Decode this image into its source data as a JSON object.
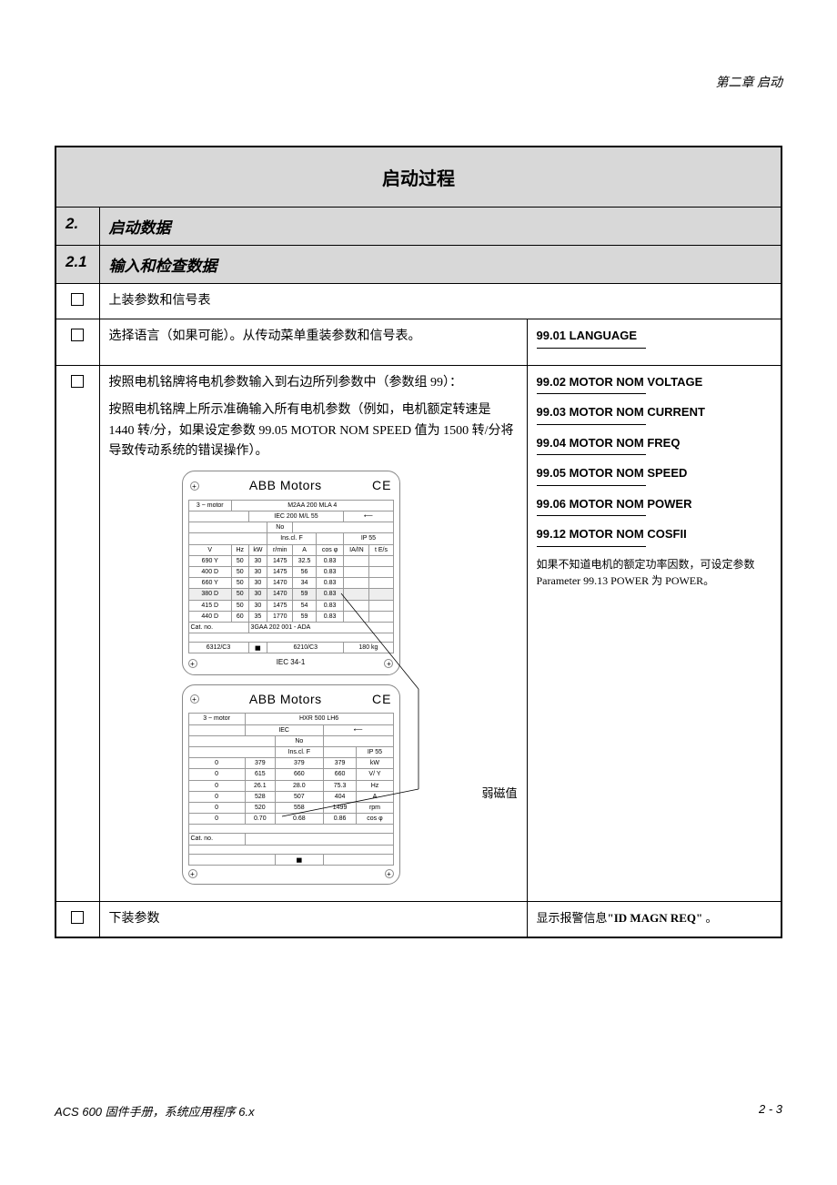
{
  "chapter_header": "第二章 启动",
  "title": "启动过程",
  "section2": {
    "num": "2.",
    "label": "启动数据"
  },
  "section21": {
    "num": "2.1",
    "label": "输入和检查数据"
  },
  "row1": {
    "desc": "上装参数和信号表"
  },
  "row2": {
    "desc": "选择语言（如果可能）。从传动菜单重装参数和信号表。",
    "param": "99.01 LANGUAGE"
  },
  "row3": {
    "desc1": "按照电机铭牌将电机参数输入到右边所列参数中（参数组 99）：",
    "desc2": "按照电机铭牌上所示准确输入所有电机参数（例如，电机额定转速是 1440 转/分，如果设定参数 99.05 MOTOR NOM SPEED 值为 1500 转/分将导致传动系统的错误操作）。",
    "params": [
      "99.02 MOTOR NOM VOLTAGE",
      "99.03 MOTOR NOM CURRENT",
      "99.04 MOTOR NOM FREQ",
      "99.05 MOTOR NOM SPEED",
      "99.06 MOTOR NOM POWER",
      "99.12 MOTOR NOM COSFII"
    ],
    "note": "如果不知道电机的额定功率因数，可设定参数 Parameter 99.13 POWER 为 POWER。",
    "callout": "弱磁值"
  },
  "row4": {
    "desc": "下装参数",
    "param": "显示报警信息\"ID MAGN REQ\" 。"
  },
  "nameplate1": {
    "brand": "ABB Motors",
    "ce": "CE",
    "motor_type": "3 ~ motor",
    "model": "M2AA 200 MLA 4",
    "iec": "IEC 200 M/L 55",
    "no_label": "No",
    "ins": "Ins.cl. F",
    "ip": "IP 55",
    "headers": [
      "V",
      "Hz",
      "kW",
      "r/min",
      "A",
      "cos φ",
      "IA/IN",
      "t E/s"
    ],
    "rows": [
      [
        "690 Y",
        "50",
        "30",
        "1475",
        "32.5",
        "0.83",
        "",
        ""
      ],
      [
        "400 D",
        "50",
        "30",
        "1475",
        "56",
        "0.83",
        "",
        ""
      ],
      [
        "660 Y",
        "50",
        "30",
        "1470",
        "34",
        "0.83",
        "",
        ""
      ],
      [
        "380 D",
        "50",
        "30",
        "1470",
        "59",
        "0.83",
        "",
        ""
      ],
      [
        "415 D",
        "50",
        "30",
        "1475",
        "54",
        "0.83",
        "",
        ""
      ],
      [
        "440 D",
        "60",
        "35",
        "1770",
        "59",
        "0.83",
        "",
        ""
      ]
    ],
    "highlight_row": 3,
    "catno_label": "Cat. no.",
    "catno": "3GAA 202 001 - ADA",
    "bottom1": "6312/C3",
    "bottom2": "6210/C3",
    "bottom3": "180  kg",
    "iec34": "IEC 34-1"
  },
  "nameplate2": {
    "brand": "ABB Motors",
    "ce": "CE",
    "motor_type": "3 ~ motor",
    "model": "HXR 500 LH6",
    "iec": "IEC",
    "no_label": "No",
    "ins": "Ins.cl. F",
    "ip": "IP 55",
    "rows": [
      [
        "0",
        "379",
        "379",
        "379",
        "kW"
      ],
      [
        "0",
        "615",
        "660",
        "660",
        "V/ Y"
      ],
      [
        "0",
        "26.1",
        "28.0",
        "75.3",
        "Hz"
      ],
      [
        "0",
        "528",
        "507",
        "404",
        "A"
      ],
      [
        "0",
        "520",
        "558",
        "1499",
        "rpm"
      ],
      [
        "0",
        "0.70",
        "0.68",
        "0.86",
        "cos φ"
      ]
    ],
    "catno_label": "Cat. no."
  },
  "footer": {
    "left": "ACS 600 固件手册，系统应用程序 6.x",
    "right": "2 - 3"
  }
}
